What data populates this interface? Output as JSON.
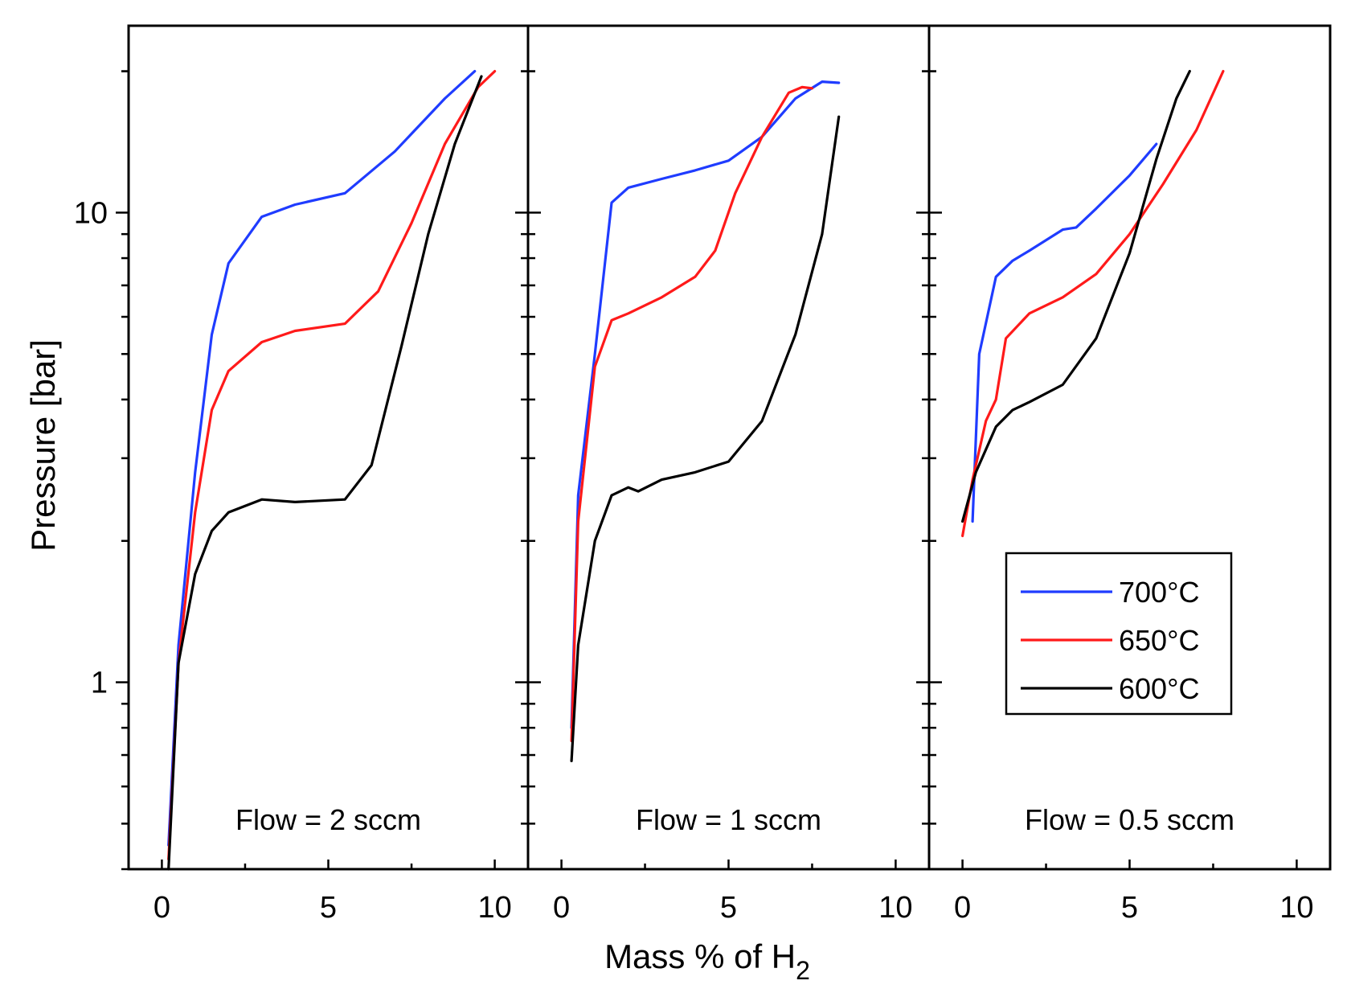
{
  "chart_data": {
    "type": "line",
    "xlabel": "Mass % of H",
    "xlabel_subscript": "2",
    "ylabel": "Pressure [bar]",
    "yscale": "log",
    "ylim": [
      0.4,
      25
    ],
    "xlim": [
      -1,
      11
    ],
    "x_ticks": [
      "0",
      "5",
      "10"
    ],
    "x_tick_values": [
      0,
      5,
      10
    ],
    "y_ticks": [
      "10",
      "1"
    ],
    "y_tick_values": [
      10,
      1
    ],
    "legend": {
      "position": "lower-right of third panel",
      "entries": [
        {
          "label": "700°C",
          "color": "#1f3cff"
        },
        {
          "label": "650°C",
          "color": "#ff1a1a"
        },
        {
          "label": "600°C",
          "color": "#000000"
        }
      ]
    },
    "panels": [
      {
        "label": "Flow = 2 sccm",
        "series": [
          {
            "name": "700°C",
            "color": "#1f3cff",
            "points": [
              [
                0.2,
                0.45
              ],
              [
                0.5,
                1.2
              ],
              [
                1,
                2.8
              ],
              [
                1.5,
                5.5
              ],
              [
                2,
                7.8
              ],
              [
                3,
                9.8
              ],
              [
                4,
                10.4
              ],
              [
                5.5,
                11.0
              ],
              [
                7,
                13.5
              ],
              [
                8.5,
                17.5
              ],
              [
                9.4,
                20
              ]
            ]
          },
          {
            "name": "650°C",
            "color": "#ff1a1a",
            "points": [
              [
                0.2,
                0.42
              ],
              [
                0.5,
                1.1
              ],
              [
                1,
                2.3
              ],
              [
                1.5,
                3.8
              ],
              [
                2,
                4.6
              ],
              [
                3,
                5.3
              ],
              [
                4,
                5.6
              ],
              [
                5.5,
                5.8
              ],
              [
                6.5,
                6.8
              ],
              [
                7.5,
                9.5
              ],
              [
                8.5,
                14
              ],
              [
                9.5,
                18.5
              ],
              [
                10,
                20
              ]
            ]
          },
          {
            "name": "600°C",
            "color": "#000000",
            "points": [
              [
                0.2,
                0.4
              ],
              [
                0.5,
                1.1
              ],
              [
                1,
                1.7
              ],
              [
                1.5,
                2.1
              ],
              [
                2,
                2.3
              ],
              [
                3,
                2.45
              ],
              [
                4,
                2.42
              ],
              [
                5.5,
                2.45
              ],
              [
                6.3,
                2.9
              ],
              [
                7.2,
                5.2
              ],
              [
                8,
                9
              ],
              [
                8.8,
                14
              ],
              [
                9.6,
                19.5
              ]
            ]
          }
        ]
      },
      {
        "label": "Flow = 1 sccm",
        "series": [
          {
            "name": "700°C",
            "color": "#1f3cff",
            "points": [
              [
                0.3,
                0.8
              ],
              [
                0.5,
                2.5
              ],
              [
                1,
                5
              ],
              [
                1.5,
                10.5
              ],
              [
                2,
                11.3
              ],
              [
                3,
                11.8
              ],
              [
                4,
                12.3
              ],
              [
                5,
                12.9
              ],
              [
                6,
                14.5
              ],
              [
                7,
                17.5
              ],
              [
                7.8,
                19.0
              ],
              [
                8.3,
                18.9
              ]
            ]
          },
          {
            "name": "650°C",
            "color": "#ff1a1a",
            "points": [
              [
                0.3,
                0.75
              ],
              [
                0.5,
                2.2
              ],
              [
                1,
                4.7
              ],
              [
                1.5,
                5.9
              ],
              [
                2,
                6.1
              ],
              [
                3,
                6.6
              ],
              [
                4,
                7.3
              ],
              [
                4.6,
                8.3
              ],
              [
                5.2,
                11
              ],
              [
                6,
                14.5
              ],
              [
                6.8,
                18
              ],
              [
                7.2,
                18.5
              ],
              [
                7.5,
                18.4
              ]
            ]
          },
          {
            "name": "600°C",
            "color": "#000000",
            "points": [
              [
                0.3,
                0.68
              ],
              [
                0.5,
                1.2
              ],
              [
                1,
                2.0
              ],
              [
                1.5,
                2.5
              ],
              [
                2,
                2.6
              ],
              [
                2.3,
                2.55
              ],
              [
                3,
                2.7
              ],
              [
                4,
                2.8
              ],
              [
                5,
                2.95
              ],
              [
                6,
                3.6
              ],
              [
                7,
                5.5
              ],
              [
                7.8,
                9
              ],
              [
                8.3,
                16
              ]
            ]
          }
        ]
      },
      {
        "label": "Flow = 0.5 sccm",
        "series": [
          {
            "name": "700°C",
            "color": "#1f3cff",
            "points": [
              [
                0.3,
                2.2
              ],
              [
                0.5,
                5
              ],
              [
                1,
                7.3
              ],
              [
                1.5,
                7.9
              ],
              [
                2,
                8.3
              ],
              [
                3,
                9.2
              ],
              [
                3.4,
                9.3
              ],
              [
                4,
                10.2
              ],
              [
                5,
                12
              ],
              [
                5.8,
                14
              ]
            ]
          },
          {
            "name": "650°C",
            "color": "#ff1a1a",
            "points": [
              [
                0.0,
                2.05
              ],
              [
                0.3,
                2.7
              ],
              [
                0.7,
                3.6
              ],
              [
                1,
                4.0
              ],
              [
                1.3,
                5.4
              ],
              [
                2,
                6.1
              ],
              [
                3,
                6.6
              ],
              [
                4,
                7.4
              ],
              [
                5,
                9
              ],
              [
                6,
                11.5
              ],
              [
                7,
                15
              ],
              [
                7.8,
                20
              ]
            ]
          },
          {
            "name": "600°C",
            "color": "#000000",
            "points": [
              [
                0.0,
                2.2
              ],
              [
                0.4,
                2.8
              ],
              [
                1,
                3.5
              ],
              [
                1.5,
                3.8
              ],
              [
                2,
                3.95
              ],
              [
                3,
                4.3
              ],
              [
                4,
                5.4
              ],
              [
                5,
                8.2
              ],
              [
                5.8,
                13
              ],
              [
                6.4,
                17.5
              ],
              [
                6.8,
                20
              ]
            ]
          }
        ]
      }
    ]
  }
}
